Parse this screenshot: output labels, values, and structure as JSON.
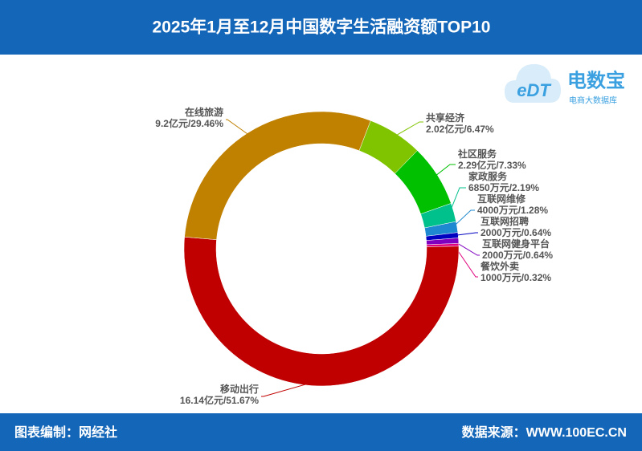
{
  "chart_data": {
    "type": "donut",
    "title": "2025年1月至12月中国数字生活融资额TOP10",
    "categories": [
      "共享经济",
      "社区服务",
      "家政服务",
      "互联网维修",
      "互联网招聘",
      "互联网健身平台",
      "餐饮外卖",
      "移动出行",
      "在线旅游"
    ],
    "values": [
      6.47,
      7.33,
      2.19,
      1.28,
      0.64,
      0.64,
      0.32,
      51.67,
      29.46
    ],
    "value_labels": [
      "2.02亿元/6.47%",
      "2.29亿元/7.33%",
      "6850万元/2.19%",
      "4000万元/1.28%",
      "2000万元/0.64%",
      "2000万元/0.64%",
      "1000万元/0.32%",
      "16.14亿元/51.67%",
      "9.2亿元/29.46%"
    ],
    "colors": [
      "#80c400",
      "#00c000",
      "#00c08c",
      "#1e88d0",
      "#0000c0",
      "#8000c0",
      "#e0007c",
      "#c00000",
      "#c08000"
    ]
  },
  "footer": {
    "left": "图表编制：网经社",
    "right": "数据来源：WWW.100EC.CN"
  },
  "logo": {
    "mark": "eDT",
    "name": "电数宝",
    "subtitle": "电商大数据库"
  }
}
